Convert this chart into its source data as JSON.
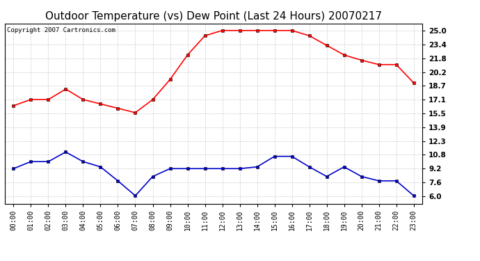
{
  "title": "Outdoor Temperature (vs) Dew Point (Last 24 Hours) 20070217",
  "copyright_text": "Copyright 2007 Cartronics.com",
  "x_labels": [
    "00:00",
    "01:00",
    "02:00",
    "03:00",
    "04:00",
    "05:00",
    "06:00",
    "07:00",
    "08:00",
    "09:00",
    "10:00",
    "11:00",
    "12:00",
    "13:00",
    "14:00",
    "15:00",
    "16:00",
    "17:00",
    "18:00",
    "19:00",
    "20:00",
    "21:00",
    "22:00",
    "23:00"
  ],
  "temp_data": [
    16.4,
    17.1,
    17.1,
    18.3,
    17.1,
    16.6,
    16.1,
    15.6,
    17.1,
    19.4,
    22.2,
    24.4,
    25.0,
    25.0,
    25.0,
    25.0,
    25.0,
    24.4,
    23.3,
    22.2,
    21.6,
    21.1,
    21.1,
    19.0
  ],
  "dew_data": [
    9.2,
    10.0,
    10.0,
    11.1,
    10.0,
    9.4,
    7.8,
    6.1,
    8.3,
    9.2,
    9.2,
    9.2,
    9.2,
    9.2,
    9.4,
    10.6,
    10.6,
    9.4,
    8.3,
    9.4,
    8.3,
    7.8,
    7.8,
    6.1
  ],
  "temp_color": "#ff0000",
  "dew_color": "#0000cc",
  "marker": "s",
  "marker_size": 2.5,
  "line_width": 1.2,
  "y_ticks": [
    6.0,
    7.6,
    9.2,
    10.8,
    12.3,
    13.9,
    15.5,
    17.1,
    18.7,
    20.2,
    21.8,
    23.4,
    25.0
  ],
  "y_min": 5.2,
  "y_max": 25.8,
  "grid_color": "#cccccc",
  "bg_color": "#ffffff",
  "title_fontsize": 11,
  "copyright_fontsize": 6.5,
  "tick_fontsize": 7,
  "ytick_fontsize": 7.5
}
